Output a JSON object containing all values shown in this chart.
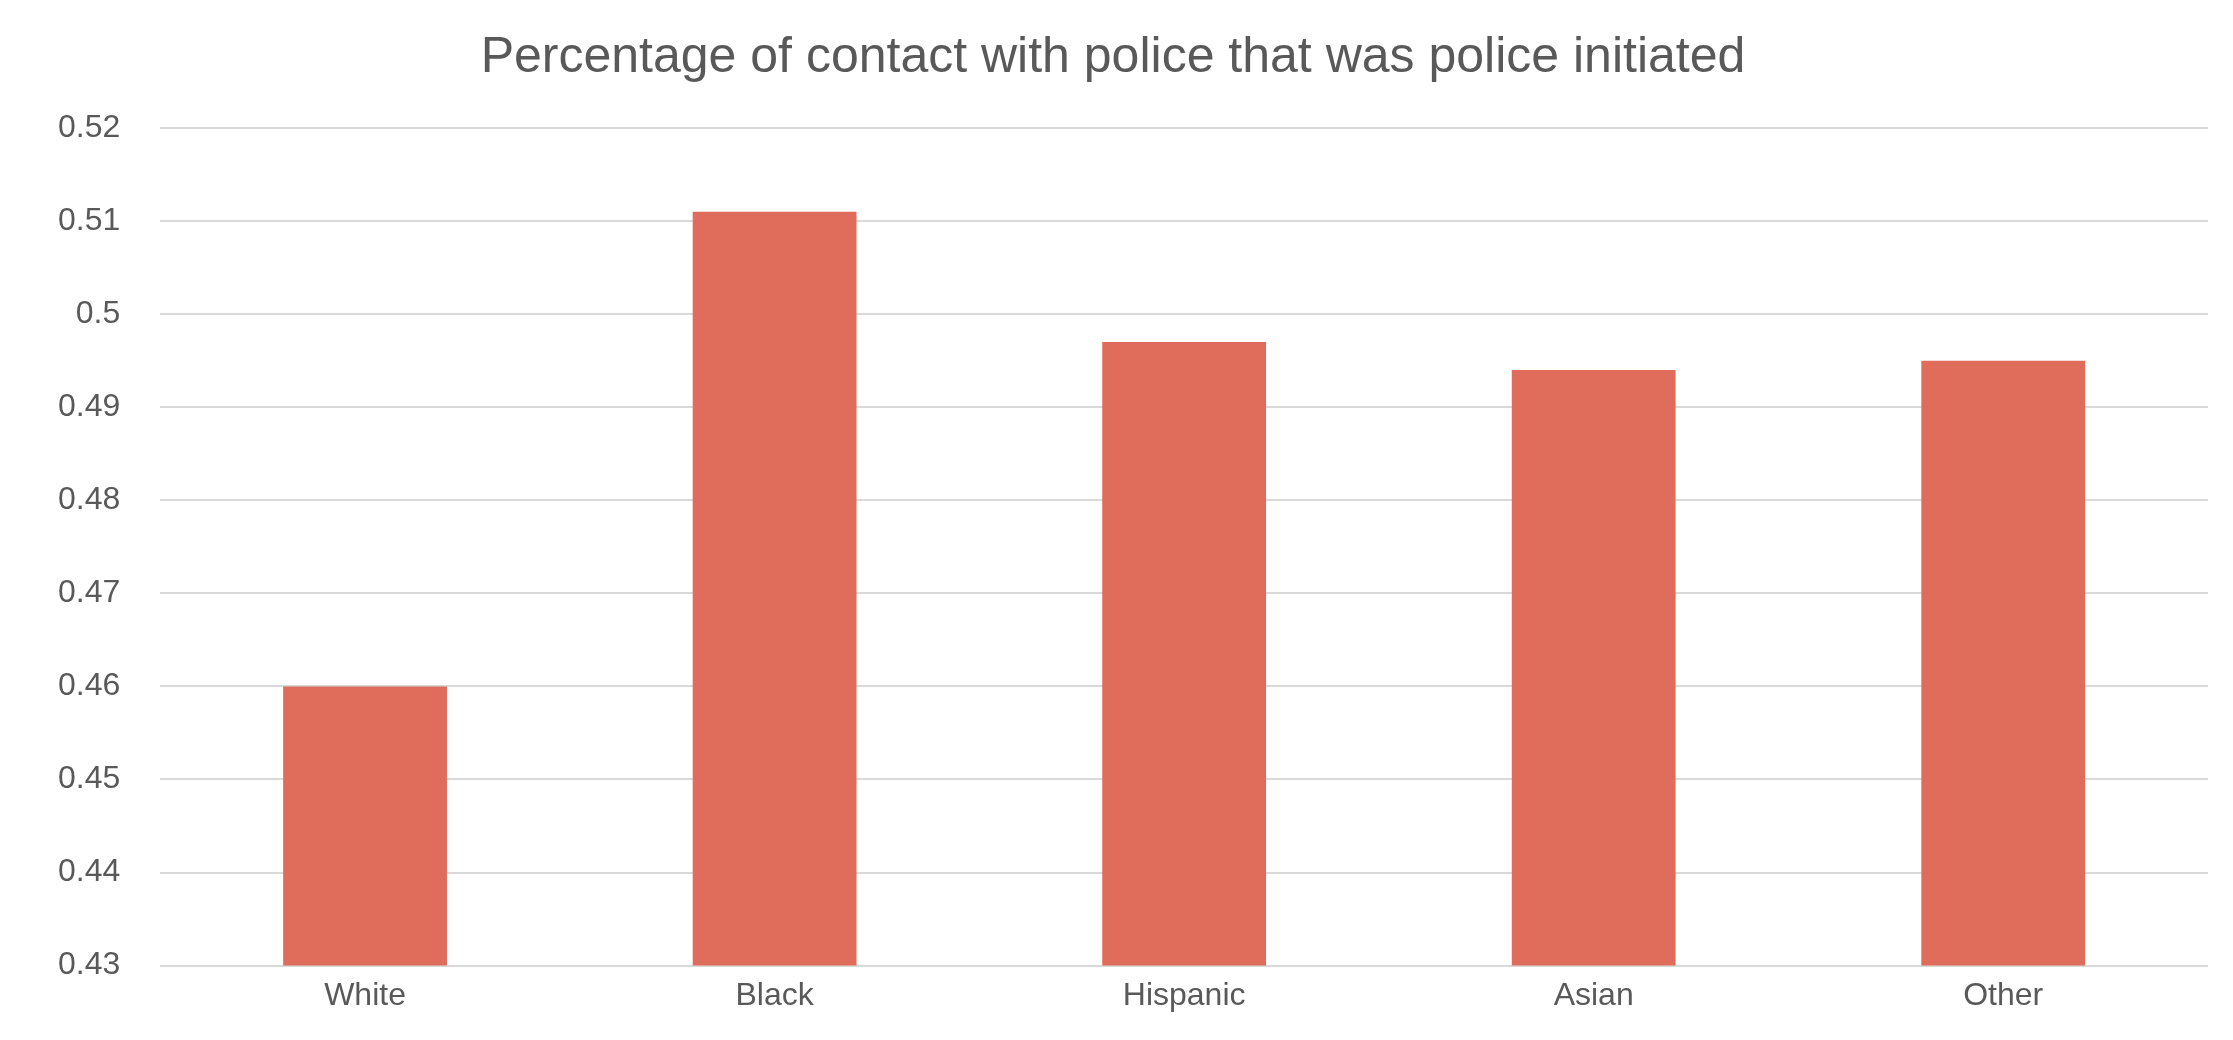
{
  "chart_data": {
    "type": "bar",
    "title": "Percentage of contact with police that was police initiated",
    "categories": [
      "White",
      "Black",
      "Hispanic",
      "Asian",
      "Other"
    ],
    "values": [
      0.46,
      0.511,
      0.497,
      0.494,
      0.495
    ],
    "color": "#e06c5c",
    "ylim": [
      0.43,
      0.52
    ],
    "yticks": [
      0.43,
      0.44,
      0.45,
      0.46,
      0.47,
      0.48,
      0.49,
      0.5,
      0.51,
      0.52
    ],
    "grid": "y",
    "legend": false
  }
}
